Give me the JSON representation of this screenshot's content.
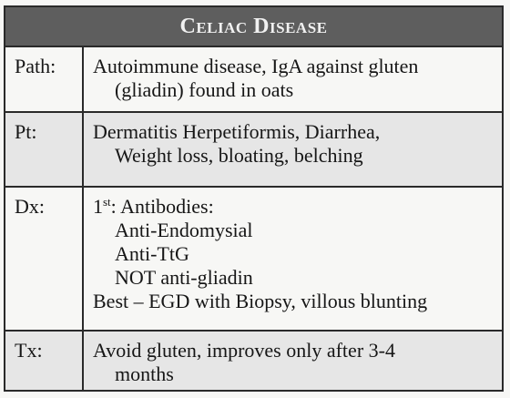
{
  "card": {
    "title": "Celiac Disease",
    "rows": [
      {
        "label": "Path:",
        "lines": [
          {
            "text": "Autoimmune disease, IgA against gluten",
            "indent": false
          },
          {
            "text": "(gliadin) found in oats",
            "indent": true
          }
        ]
      },
      {
        "label": "Pt:",
        "lines": [
          {
            "text": "Dermatitis Herpetiformis, Diarrhea,",
            "indent": false
          },
          {
            "text": "Weight loss, bloating, belching",
            "indent": true
          }
        ]
      },
      {
        "label": "Dx:",
        "lines": [
          {
            "ordinal": "1",
            "ordinal_suffix": "st",
            "text": ": Antibodies:",
            "indent": false
          },
          {
            "text": "Anti-Endomysial",
            "indent": true
          },
          {
            "text": "Anti-TtG",
            "indent": true
          },
          {
            "text": "NOT anti-gliadin",
            "indent": true
          },
          {
            "text": "Best – EGD with Biopsy, villous blunting",
            "indent": false
          }
        ]
      },
      {
        "label": "Tx:",
        "lines": [
          {
            "text": "Avoid gluten, improves only after 3-4",
            "indent": false
          },
          {
            "text": "months",
            "indent": true
          }
        ]
      }
    ]
  },
  "colors": {
    "header_bg": "#5e5e5e",
    "header_text": "#f1f1f1",
    "row_shade": "#e6e6e6",
    "border": "#2a2a2a"
  }
}
